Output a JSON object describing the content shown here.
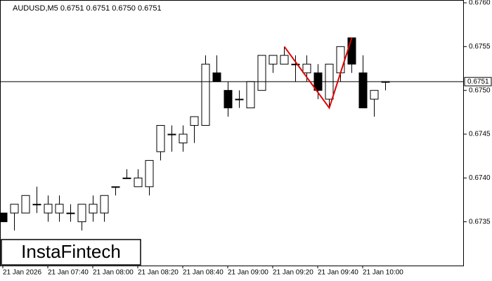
{
  "chart_data": {
    "type": "candlestick",
    "title": "AUDUSD,M5  0.6751 0.6751 0.6750 0.6751",
    "watermark": "InstaFintech",
    "categories": [
      "21 Jan 2026",
      null,
      null,
      null,
      "21 Jan 07:40",
      null,
      null,
      null,
      "21 Jan 08:00",
      null,
      null,
      null,
      "21 Jan 08:20",
      null,
      null,
      null,
      "21 Jan 08:40",
      null,
      null,
      null,
      "21 Jan 09:00",
      null,
      null,
      null,
      "21 Jan 09:20",
      null,
      null,
      null,
      "21 Jan 09:40",
      null,
      null,
      null,
      "21 Jan 10:00",
      null,
      null
    ],
    "open": [
      0.6736,
      0.6736,
      0.6736,
      0.6737,
      0.6736,
      0.6736,
      0.6736,
      0.6735,
      0.6736,
      0.6736,
      0.6739,
      0.674,
      0.6739,
      0.6739,
      0.6743,
      0.6745,
      0.6744,
      0.6746,
      0.6746,
      0.6752,
      0.675,
      0.6749,
      0.6748,
      0.675,
      0.6753,
      0.6753,
      0.6753,
      0.6752,
      0.6752,
      0.6749,
      0.6752,
      0.6756,
      0.6752,
      0.6749,
      0.6751
    ],
    "high": [
      0.6736,
      0.6737,
      0.6738,
      0.6739,
      0.6738,
      0.6738,
      0.6737,
      0.6737,
      0.6738,
      0.6738,
      0.6739,
      0.6741,
      0.6741,
      0.6742,
      0.6746,
      0.6746,
      0.6746,
      0.6747,
      0.6754,
      0.6754,
      0.6751,
      0.675,
      0.6751,
      0.6754,
      0.6754,
      0.6755,
      0.6754,
      0.6754,
      0.6753,
      0.6753,
      0.6755,
      0.6756,
      0.6754,
      0.675,
      0.6751
    ],
    "low": [
      0.6735,
      0.6734,
      0.6736,
      0.6736,
      0.6735,
      0.6735,
      0.6735,
      0.6734,
      0.6735,
      0.6735,
      0.6738,
      0.674,
      0.6739,
      0.6738,
      0.6742,
      0.6743,
      0.6743,
      0.6744,
      0.6746,
      0.6751,
      0.6747,
      0.6748,
      0.6748,
      0.675,
      0.6752,
      0.6753,
      0.6751,
      0.6751,
      0.6749,
      0.6748,
      0.6751,
      0.6752,
      0.6748,
      0.6747,
      0.675
    ],
    "close": [
      0.6735,
      0.6737,
      0.6738,
      0.6737,
      0.6737,
      0.6737,
      0.6736,
      0.6737,
      0.6737,
      0.6738,
      0.6739,
      0.674,
      0.674,
      0.6742,
      0.6746,
      0.6745,
      0.6745,
      0.6747,
      0.6753,
      0.6751,
      0.6748,
      0.6749,
      0.6751,
      0.6754,
      0.6754,
      0.6754,
      0.6753,
      0.6753,
      0.675,
      0.6753,
      0.6755,
      0.6753,
      0.6748,
      0.675,
      0.6751
    ],
    "up_color": "#ffffff",
    "down_color": "#000000",
    "current_price": 0.6751,
    "pattern": {
      "color": "#e00000",
      "x": [
        25,
        29,
        31
      ],
      "values": [
        0.6755,
        0.6748,
        0.6756
      ]
    },
    "ylim": [
      0.673,
      0.676
    ],
    "yticks": [
      0.6735,
      {
        "value": 0.674,
        "label": "0.6740"
      },
      0.6745,
      {
        "value": 0.675,
        "label": "0.6750"
      },
      0.6755,
      {
        "value": 0.676,
        "label": "0.6760"
      }
    ]
  }
}
